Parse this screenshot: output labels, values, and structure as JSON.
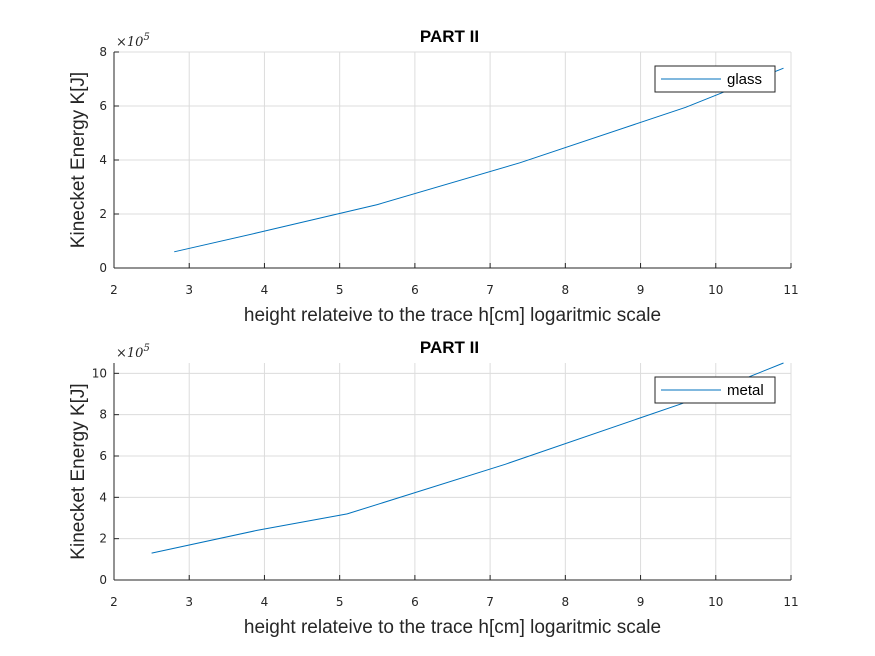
{
  "chart_data": [
    {
      "type": "line",
      "title": "PART II",
      "xlabel": "height relateive to the trace h[cm] logaritmic scale",
      "ylabel": "Kinecket Energy K[J]",
      "y_exponent_base": "×10",
      "y_exponent_power": "5",
      "xlim": [
        2,
        11
      ],
      "ylim": [
        0,
        8
      ],
      "xticks": [
        2,
        3,
        4,
        5,
        6,
        7,
        8,
        9,
        10,
        11
      ],
      "yticks": [
        0,
        2,
        4,
        6,
        8
      ],
      "grid": true,
      "legend_position": "top-right",
      "color": "#0072BD",
      "series": [
        {
          "name": "glass",
          "x": [
            2.8,
            3.9,
            5.5,
            7.4,
            9.6,
            10.9
          ],
          "y": [
            0.6,
            1.3,
            2.35,
            3.9,
            5.95,
            7.4
          ]
        }
      ]
    },
    {
      "type": "line",
      "title": "PART II",
      "xlabel": "height relateive to the trace h[cm] logaritmic scale",
      "ylabel": "Kinecket Energy K[J]",
      "y_exponent_base": "×10",
      "y_exponent_power": "5",
      "xlim": [
        2,
        11
      ],
      "ylim": [
        0,
        10.5
      ],
      "xticks": [
        2,
        3,
        4,
        5,
        6,
        7,
        8,
        9,
        10,
        11
      ],
      "yticks": [
        0,
        2,
        4,
        6,
        8,
        10
      ],
      "grid": true,
      "legend_position": "top-right",
      "color": "#0072BD",
      "series": [
        {
          "name": "metal",
          "x": [
            2.5,
            3.9,
            5.1,
            7.2,
            9.6,
            10.9
          ],
          "y": [
            1.3,
            2.4,
            3.2,
            5.6,
            8.6,
            10.5
          ]
        }
      ]
    }
  ]
}
